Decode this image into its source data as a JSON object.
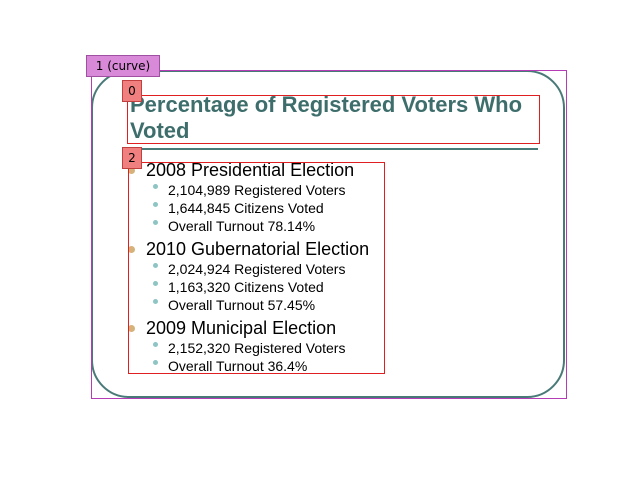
{
  "slide": {
    "title": "Percentage of Registered Voters Who Voted",
    "sections": [
      {
        "heading": "2008 Presidential Election",
        "items": [
          "2,104,989 Registered Voters",
          "1,644,845 Citizens Voted",
          "Overall Turnout 78.14%"
        ]
      },
      {
        "heading": "2010 Gubernatorial Election",
        "items": [
          "2,024,924 Registered Voters",
          "1,163,320 Citizens Voted",
          "Overall Turnout 57.45%"
        ]
      },
      {
        "heading": "2009 Municipal Election",
        "items": [
          "2,152,320 Registered Voters",
          "Overall Turnout 36.4%"
        ]
      }
    ]
  },
  "annotations": {
    "curve_label": "1 (curve)",
    "title_label": "0",
    "body_label": "2"
  },
  "colors": {
    "title": "#3e6e6c",
    "frame": "#4a7a78",
    "bullet_level1": "#d4b27a",
    "bullet_level2": "#8fc4c4",
    "annotation_red": "#e02020",
    "annotation_magenta": "#b43cb4"
  }
}
